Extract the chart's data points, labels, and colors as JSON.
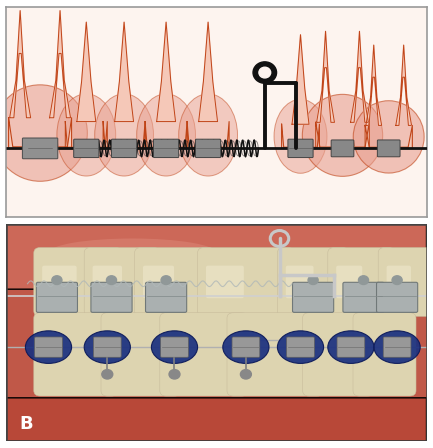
{
  "fig_width": 4.33,
  "fig_height": 4.48,
  "dpi": 100,
  "top_bg": "#fdf4ef",
  "tooth_light": "#f5c8b8",
  "tooth_mid": "#e89070",
  "tooth_dark": "#cc5522",
  "tooth_outline": "#c04418",
  "gum_color": "#e8a090",
  "wire_color": "#111111",
  "bracket_color": "#909090",
  "spring_color": "#222222",
  "bottom_gum_upper": "#d07060",
  "bottom_gum_lower": "#c06050",
  "bottom_tooth_color": "#e8dcc8",
  "bottom_bracket_silver": "#b0b8b8",
  "bottom_blue": "#1a3580",
  "bottom_bg": "#b85040"
}
